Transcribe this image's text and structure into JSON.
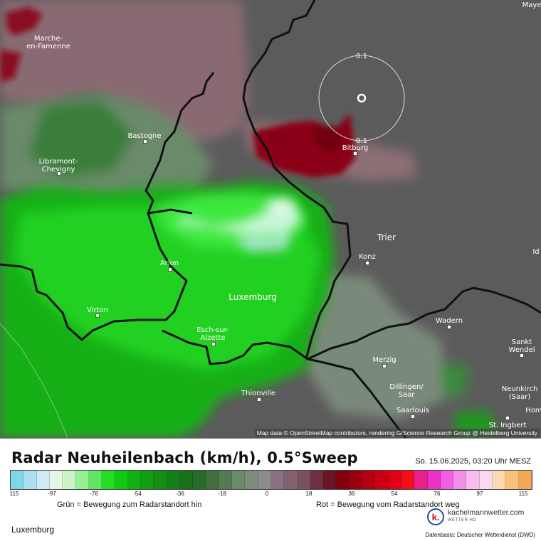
{
  "map": {
    "cities": [
      {
        "id": "marche",
        "label": "Marche-\nen-Famenne"
      },
      {
        "id": "bastogne",
        "label": "Bastogne"
      },
      {
        "id": "libramont",
        "label": "Libramont-\nChevigny"
      },
      {
        "id": "arlon",
        "label": "Arlon"
      },
      {
        "id": "virton",
        "label": "Virton"
      },
      {
        "id": "luxemburg",
        "label": "Luxemburg"
      },
      {
        "id": "esch",
        "label": "Esch-sur-\nAlzette"
      },
      {
        "id": "thionville",
        "label": "Thionville"
      },
      {
        "id": "bitburg",
        "label": "Bitburg"
      },
      {
        "id": "trier",
        "label": "Trier"
      },
      {
        "id": "konz",
        "label": "Konz"
      },
      {
        "id": "wadern",
        "label": "Wadern"
      },
      {
        "id": "merzig",
        "label": "Merzig"
      },
      {
        "id": "dillingen",
        "label": "Dillingen/\nSaar"
      },
      {
        "id": "saarlouis",
        "label": "Saarlouis"
      },
      {
        "id": "stwendel",
        "label": "Sankt\nWendel"
      },
      {
        "id": "neunkirchen",
        "label": "Neunkirch\n(Saar)"
      },
      {
        "id": "hom",
        "label": "Hom"
      },
      {
        "id": "stingbert",
        "label": "St. Ingbert"
      },
      {
        "id": "mayen",
        "label": "Maye"
      },
      {
        "id": "id",
        "label": "Id"
      }
    ],
    "range_labels": [
      "0.1",
      "0.1"
    ],
    "attribution": "Map data © OpenStreetMap contributors, rendering GIScience Research Group @ Heidelberg University",
    "colors": {
      "background": "#5b5b5b",
      "border": "#111111",
      "ring": "#ffffff"
    }
  },
  "panel": {
    "title": "Radar Neuheilenbach (km/h), 0.5°Sweep",
    "timestamp": "So. 15.06.2025, 03:20 Uhr MESZ",
    "scale_colors": [
      "#7fd6e6",
      "#aadff0",
      "#cfe9f5",
      "#e6f6e6",
      "#c8f5c8",
      "#96f096",
      "#60e660",
      "#22dd22",
      "#12c812",
      "#10b010",
      "#129e12",
      "#148e14",
      "#167e16",
      "#1a701a",
      "#286a28",
      "#406e40",
      "#567a56",
      "#6a8a6a",
      "#7e8c7e",
      "#8e8a8e",
      "#8a7080",
      "#826070",
      "#7a5060",
      "#6e3040",
      "#6a1424",
      "#800010",
      "#9a0010",
      "#b40012",
      "#cc0014",
      "#e00018",
      "#f0101c",
      "#e8208a",
      "#ec30c8",
      "#f060e0",
      "#f490e8",
      "#f8bdef",
      "#fcd8f0",
      "#ffd9b0",
      "#fbc07a",
      "#f3a955"
    ],
    "ticks": [
      "115",
      "-97",
      "-76",
      "-54",
      "-36",
      "-18",
      "0",
      "18",
      "36",
      "54",
      "76",
      "97",
      "115"
    ],
    "legend_left": "Grün = Bewegung zum Radarstandort hin",
    "legend_right": "Rot = Bewegung vom Radarstandort weg",
    "region": "Luxemburg",
    "logo_letter": "k.",
    "logo_name": "kachelmannwetter.com",
    "logo_sub": "WETTER HD",
    "source": "Datenbasis: Deutscher Wetterdienst (DWD)"
  }
}
